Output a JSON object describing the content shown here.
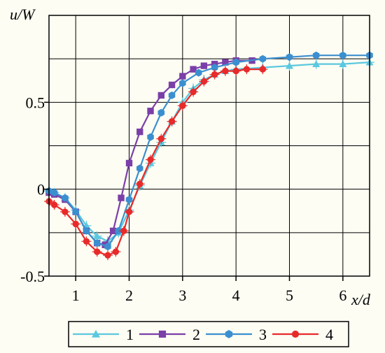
{
  "chart_data": {
    "type": "line",
    "xlabel": "x/d",
    "ylabel": "u/W",
    "xlim": [
      0.5,
      6.5
    ],
    "ylim": [
      -0.5,
      1.0
    ],
    "grid": true,
    "legend_position": "bottom",
    "x_ticks": [
      1,
      2,
      3,
      4,
      5,
      6
    ],
    "x_tick_labels": [
      "1",
      "2",
      "3",
      "4",
      "5",
      "6"
    ],
    "y_ticks": [
      -0.5,
      0,
      0.5
    ],
    "y_tick_labels": [
      "-0.5",
      "0",
      "0.5"
    ],
    "series": [
      {
        "name": "1",
        "color": "#5bc8e0",
        "marker": "triangle",
        "x": [
          0.5,
          0.6,
          0.8,
          1.0,
          1.2,
          1.4,
          1.6,
          1.8,
          2.0,
          2.2,
          2.4,
          2.6,
          2.8,
          3.0,
          3.2,
          3.4,
          3.6,
          3.8,
          4.0,
          4.5,
          5.0,
          5.5,
          6.0,
          6.5
        ],
        "y": [
          -0.01,
          -0.02,
          -0.05,
          -0.12,
          -0.21,
          -0.27,
          -0.3,
          -0.25,
          -0.12,
          0.02,
          0.15,
          0.27,
          0.39,
          0.5,
          0.58,
          0.63,
          0.66,
          0.68,
          0.69,
          0.7,
          0.71,
          0.72,
          0.72,
          0.73
        ]
      },
      {
        "name": "2",
        "color": "#7b3fa8",
        "marker": "square",
        "x": [
          0.5,
          0.6,
          0.8,
          1.0,
          1.2,
          1.4,
          1.55,
          1.7,
          1.85,
          2.0,
          2.2,
          2.4,
          2.6,
          2.8,
          3.0,
          3.2,
          3.4,
          3.6,
          3.8,
          4.0,
          4.3
        ],
        "y": [
          -0.02,
          -0.03,
          -0.06,
          -0.13,
          -0.24,
          -0.31,
          -0.32,
          -0.24,
          -0.05,
          0.15,
          0.33,
          0.45,
          0.54,
          0.6,
          0.65,
          0.69,
          0.71,
          0.72,
          0.73,
          0.74,
          0.74
        ]
      },
      {
        "name": "3",
        "color": "#3b8fd0",
        "marker": "pentagon",
        "x": [
          0.5,
          0.6,
          0.8,
          1.0,
          1.2,
          1.4,
          1.6,
          1.8,
          2.0,
          2.2,
          2.4,
          2.6,
          2.8,
          3.0,
          3.3,
          3.6,
          4.0,
          4.5,
          5.0,
          5.5,
          6.0,
          6.5
        ],
        "y": [
          -0.01,
          -0.02,
          -0.05,
          -0.13,
          -0.24,
          -0.31,
          -0.33,
          -0.24,
          -0.06,
          0.12,
          0.3,
          0.44,
          0.54,
          0.61,
          0.67,
          0.7,
          0.73,
          0.75,
          0.76,
          0.77,
          0.77,
          0.77
        ]
      },
      {
        "name": "4",
        "color": "#e82a2a",
        "marker": "circle",
        "x": [
          0.5,
          0.6,
          0.8,
          1.0,
          1.2,
          1.4,
          1.6,
          1.75,
          1.9,
          2.0,
          2.2,
          2.4,
          2.6,
          2.8,
          3.0,
          3.2,
          3.4,
          3.6,
          3.8,
          4.0,
          4.2,
          4.5
        ],
        "y": [
          -0.07,
          -0.09,
          -0.13,
          -0.2,
          -0.3,
          -0.36,
          -0.38,
          -0.36,
          -0.24,
          -0.13,
          0.03,
          0.17,
          0.29,
          0.39,
          0.48,
          0.56,
          0.62,
          0.66,
          0.68,
          0.68,
          0.69,
          0.69
        ]
      }
    ]
  }
}
